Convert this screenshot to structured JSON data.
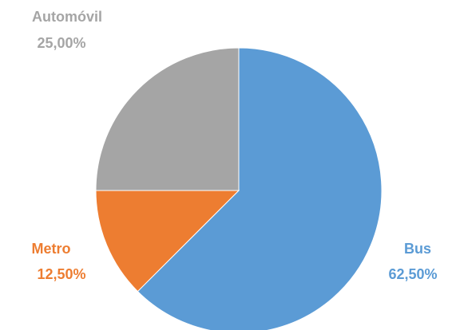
{
  "chart_data": {
    "type": "pie",
    "start_angle_deg": 0,
    "direction": "clockwise",
    "slices": [
      {
        "name": "Bus",
        "value": 62.5,
        "label": "62,50%",
        "color": "#5B9BD5"
      },
      {
        "name": "Metro",
        "value": 12.5,
        "label": "12,50%",
        "color": "#ED7D31"
      },
      {
        "name": "Automóvil",
        "value": 25.0,
        "label": "25,00%",
        "color": "#A5A5A5"
      }
    ],
    "legend": "none",
    "data_labels": "outside"
  }
}
